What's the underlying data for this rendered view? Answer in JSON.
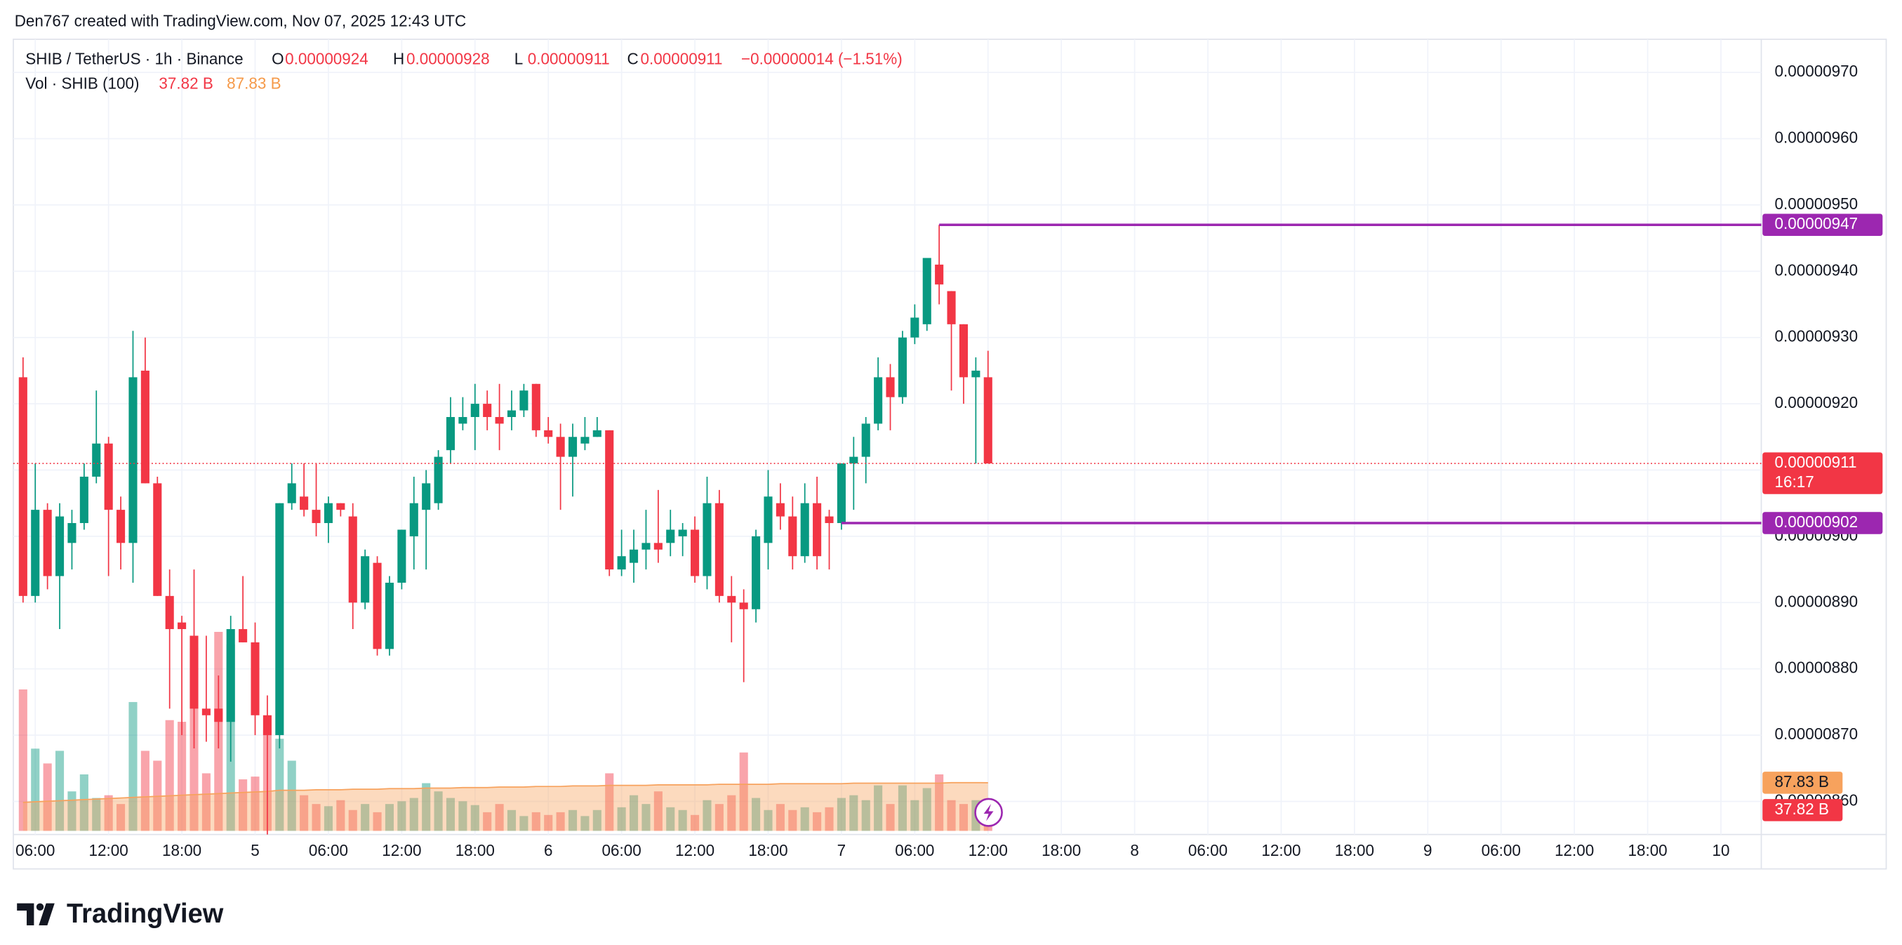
{
  "watermark": "Den767 created with TradingView.com, Nov 07, 2025 12:43 UTC",
  "brand": "TradingView",
  "chart_data": {
    "type": "candlestick",
    "title": "SHIB / TetherUS · 1h · Binance",
    "ohlc_legend": [
      {
        "label": "O",
        "value": "0.00000924"
      },
      {
        "label": "H",
        "value": "0.00000928"
      },
      {
        "label": "L",
        "value": "0.00000911"
      },
      {
        "label": "C",
        "value": "0.00000911"
      }
    ],
    "change": "−0.00000014 (−1.51%)",
    "up_color": "#089981",
    "down_color": "#f23645",
    "categories": [
      null,
      "06:00",
      null,
      null,
      null,
      null,
      null,
      "12:00",
      null,
      null,
      null,
      null,
      null,
      "18:00",
      null,
      null,
      null,
      null,
      null,
      "5",
      null,
      null,
      null,
      null,
      null,
      "06:00",
      null,
      null,
      null,
      null,
      null,
      "12:00",
      null,
      null,
      null,
      null,
      null,
      "18:00",
      null,
      null,
      null,
      null,
      null,
      "6",
      null,
      null,
      null,
      null,
      null,
      "06:00",
      null,
      null,
      null,
      null,
      null,
      "12:00",
      null,
      null,
      null,
      null,
      null,
      "18:00",
      null,
      null,
      null,
      null,
      null,
      "7",
      null,
      null,
      null,
      null,
      null,
      "06:00",
      null,
      null,
      null,
      null,
      null,
      "12:00"
    ],
    "extra_categories": [
      null,
      null,
      null,
      null,
      null,
      "18:00",
      null,
      null,
      null,
      null,
      null,
      "8",
      null,
      null,
      null,
      null,
      null,
      "06:00",
      null,
      null,
      null,
      null,
      null,
      "12:00",
      null,
      null,
      null,
      null,
      null,
      "18:00",
      null,
      null,
      null,
      null,
      null,
      "9",
      null,
      null,
      null,
      null,
      null,
      "06:00",
      null,
      null,
      null,
      null,
      null,
      "12:00",
      null,
      null,
      null,
      null,
      null,
      "18:00",
      null,
      null,
      null,
      null,
      null,
      "10"
    ],
    "open": [
      9.24e-06,
      8.91e-06,
      9.04e-06,
      8.94e-06,
      8.99e-06,
      9.02e-06,
      9.09e-06,
      9.14e-06,
      9.04e-06,
      8.99e-06,
      9.25e-06,
      9.08e-06,
      8.91e-06,
      8.87e-06,
      8.85e-06,
      8.74e-06,
      8.74e-06,
      8.72e-06,
      8.86e-06,
      8.84e-06,
      8.73e-06,
      8.7e-06,
      9.05e-06,
      9.06e-06,
      9.04e-06,
      9.02e-06,
      9.05e-06,
      9.03e-06,
      8.9e-06,
      8.96e-06,
      8.83e-06,
      8.93e-06,
      9e-06,
      9.04e-06,
      9.05e-06,
      9.13e-06,
      9.17e-06,
      9.18e-06,
      9.2e-06,
      9.18e-06,
      9.18e-06,
      9.19e-06,
      9.23e-06,
      9.16e-06,
      9.15e-06,
      9.12e-06,
      9.14e-06,
      9.15e-06,
      9.16e-06,
      8.95e-06,
      8.96e-06,
      8.98e-06,
      8.99e-06,
      8.99e-06,
      9e-06,
      9.01e-06,
      8.94e-06,
      9.05e-06,
      8.91e-06,
      8.9e-06,
      8.89e-06,
      8.99e-06,
      9.05e-06,
      9.03e-06,
      8.97e-06,
      9.05e-06,
      9.03e-06,
      9.02e-06,
      9.11e-06,
      9.12e-06,
      9.17e-06,
      9.24e-06,
      9.21e-06,
      9.3e-06,
      9.32e-06,
      9.41e-06,
      9.37e-06,
      9.32e-06,
      9.24e-06,
      9.24e-06
    ],
    "high": [
      9.27e-06,
      9.11e-06,
      9.05e-06,
      9.05e-06,
      9.04e-06,
      9.11e-06,
      9.22e-06,
      9.15e-06,
      9.06e-06,
      9.31e-06,
      9.3e-06,
      9.09e-06,
      8.95e-06,
      8.88e-06,
      8.95e-06,
      8.85e-06,
      8.79e-06,
      8.88e-06,
      8.94e-06,
      8.87e-06,
      8.76e-06,
      9.05e-06,
      9.11e-06,
      9.11e-06,
      9.11e-06,
      9.06e-06,
      9.05e-06,
      9.05e-06,
      8.98e-06,
      8.97e-06,
      8.94e-06,
      9.01e-06,
      9.09e-06,
      9.1e-06,
      9.13e-06,
      9.21e-06,
      9.21e-06,
      9.23e-06,
      9.22e-06,
      9.23e-06,
      9.22e-06,
      9.23e-06,
      9.23e-06,
      9.18e-06,
      9.17e-06,
      9.17e-06,
      9.18e-06,
      9.18e-06,
      9.16e-06,
      9.01e-06,
      9.01e-06,
      9.04e-06,
      9.07e-06,
      9.04e-06,
      9.02e-06,
      9.03e-06,
      9.09e-06,
      9.07e-06,
      8.94e-06,
      8.92e-06,
      9.01e-06,
      9.1e-06,
      9.08e-06,
      9.06e-06,
      9.08e-06,
      9.09e-06,
      9.04e-06,
      9.11e-06,
      9.15e-06,
      9.18e-06,
      9.27e-06,
      9.26e-06,
      9.31e-06,
      9.35e-06,
      9.42e-06,
      9.47e-06,
      9.37e-06,
      9.32e-06,
      9.27e-06,
      9.28e-06
    ],
    "low": [
      8.9e-06,
      8.9e-06,
      8.92e-06,
      8.86e-06,
      8.95e-06,
      9.01e-06,
      9.08e-06,
      8.94e-06,
      8.95e-06,
      8.93e-06,
      9.08e-06,
      8.91e-06,
      8.74e-06,
      8.7e-06,
      8.68e-06,
      8.69e-06,
      8.68e-06,
      8.66e-06,
      8.84e-06,
      8.7e-06,
      8.55e-06,
      8.68e-06,
      9.04e-06,
      9.03e-06,
      9e-06,
      8.99e-06,
      9.03e-06,
      8.86e-06,
      8.89e-06,
      8.82e-06,
      8.82e-06,
      8.92e-06,
      8.95e-06,
      8.95e-06,
      9.04e-06,
      9.11e-06,
      9.16e-06,
      9.13e-06,
      9.16e-06,
      9.13e-06,
      9.16e-06,
      9.18e-06,
      9.15e-06,
      9.14e-06,
      9.04e-06,
      9.06e-06,
      9.13e-06,
      9.15e-06,
      8.94e-06,
      8.94e-06,
      8.93e-06,
      8.95e-06,
      8.96e-06,
      8.97e-06,
      8.97e-06,
      8.93e-06,
      8.92e-06,
      8.9e-06,
      8.84e-06,
      8.78e-06,
      8.87e-06,
      8.95e-06,
      9.01e-06,
      8.95e-06,
      8.96e-06,
      8.95e-06,
      8.95e-06,
      9.01e-06,
      9.04e-06,
      9.08e-06,
      9.16e-06,
      9.16e-06,
      9.2e-06,
      9.29e-06,
      9.31e-06,
      9.35e-06,
      9.22e-06,
      9.2e-06,
      9.11e-06,
      9.11e-06
    ],
    "close": [
      8.91e-06,
      9.04e-06,
      8.94e-06,
      9.03e-06,
      9.02e-06,
      9.09e-06,
      9.14e-06,
      9.04e-06,
      8.99e-06,
      9.24e-06,
      9.08e-06,
      8.91e-06,
      8.86e-06,
      8.86e-06,
      8.74e-06,
      8.73e-06,
      8.72e-06,
      8.86e-06,
      8.84e-06,
      8.73e-06,
      8.7e-06,
      9.05e-06,
      9.08e-06,
      9.04e-06,
      9.02e-06,
      9.05e-06,
      9.04e-06,
      8.9e-06,
      8.97e-06,
      8.83e-06,
      8.93e-06,
      9.01e-06,
      9.05e-06,
      9.08e-06,
      9.12e-06,
      9.18e-06,
      9.18e-06,
      9.2e-06,
      9.18e-06,
      9.17e-06,
      9.19e-06,
      9.22e-06,
      9.16e-06,
      9.15e-06,
      9.12e-06,
      9.15e-06,
      9.15e-06,
      9.16e-06,
      8.95e-06,
      8.97e-06,
      8.98e-06,
      8.99e-06,
      8.98e-06,
      9.01e-06,
      9.01e-06,
      8.94e-06,
      9.05e-06,
      8.91e-06,
      8.9e-06,
      8.89e-06,
      9e-06,
      9.06e-06,
      9.03e-06,
      8.97e-06,
      9.05e-06,
      8.97e-06,
      9.02e-06,
      9.11e-06,
      9.12e-06,
      9.17e-06,
      9.24e-06,
      9.21e-06,
      9.3e-06,
      9.33e-06,
      9.42e-06,
      9.38e-06,
      9.32e-06,
      9.24e-06,
      9.25e-06,
      9.11e-06
    ],
    "ylim": [
      8.55e-06,
      9.75e-06
    ],
    "yticks": [
      {
        "value": 8.6e-06,
        "label": "0.00000860"
      },
      {
        "value": 8.7e-06,
        "label": "0.00000870"
      },
      {
        "value": 8.8e-06,
        "label": "0.00000880"
      },
      {
        "value": 8.9e-06,
        "label": "0.00000890"
      },
      {
        "value": 9e-06,
        "label": "0.00000900"
      },
      {
        "value": 9.1e-06,
        "label": "0.00000910"
      },
      {
        "value": 9.2e-06,
        "label": "0.00000920"
      },
      {
        "value": 9.3e-06,
        "label": "0.00000930"
      },
      {
        "value": 9.4e-06,
        "label": "0.00000940"
      },
      {
        "value": 9.5e-06,
        "label": "0.00000950"
      },
      {
        "value": 9.6e-06,
        "label": "0.00000960"
      },
      {
        "value": 9.7e-06,
        "label": "0.00000970"
      }
    ],
    "grid": true,
    "volume": {
      "name": "Vol · SHIB (100)",
      "ylim": [
        0,
        600
      ],
      "values": [
        258,
        150,
        123,
        146,
        72,
        103,
        60,
        65,
        49,
        235,
        146,
        128,
        202,
        199,
        334,
        105,
        363,
        340,
        94,
        99,
        184,
        168,
        128,
        65,
        49,
        45,
        56,
        38,
        49,
        34,
        49,
        54,
        60,
        87,
        72,
        60,
        54,
        47,
        34,
        49,
        38,
        27,
        34,
        29,
        34,
        38,
        27,
        38,
        105,
        43,
        65,
        49,
        72,
        43,
        38,
        29,
        56,
        49,
        65,
        143,
        60,
        38,
        49,
        38,
        43,
        34,
        43,
        60,
        65,
        56,
        83,
        49,
        83,
        56,
        78,
        103,
        56,
        49,
        56,
        37.82
      ],
      "last_label": "37.82 B",
      "ma_color": "#f7a25d",
      "ma_values": [
        52,
        53,
        54,
        55,
        56,
        57,
        58,
        59,
        60,
        61,
        62,
        63,
        64,
        65,
        66,
        67,
        68,
        69,
        70,
        71,
        72,
        74,
        74,
        74,
        75,
        75,
        75,
        76,
        76,
        76,
        77,
        77,
        77,
        78,
        78,
        78,
        79,
        79,
        79,
        80,
        80,
        80,
        81,
        81,
        81,
        82,
        82,
        82,
        83,
        83,
        83,
        83,
        84,
        84,
        84,
        84,
        84,
        85,
        85,
        85,
        85,
        85,
        86,
        86,
        86,
        86,
        86,
        86,
        87,
        87,
        87,
        87,
        87,
        87,
        87,
        87,
        88,
        88,
        88,
        87.83
      ],
      "ma_last_label": "87.83 B"
    },
    "hlines": [
      {
        "value": 9.47e-06,
        "label": "0.00000947",
        "color": "#9c27b0"
      },
      {
        "value": 9.02e-06,
        "label": "0.00000902",
        "color": "#9c27b0"
      }
    ],
    "last_price": {
      "value": 9.11e-06,
      "label": "0.00000911",
      "countdown": "16:17",
      "color": "#f23645"
    }
  }
}
